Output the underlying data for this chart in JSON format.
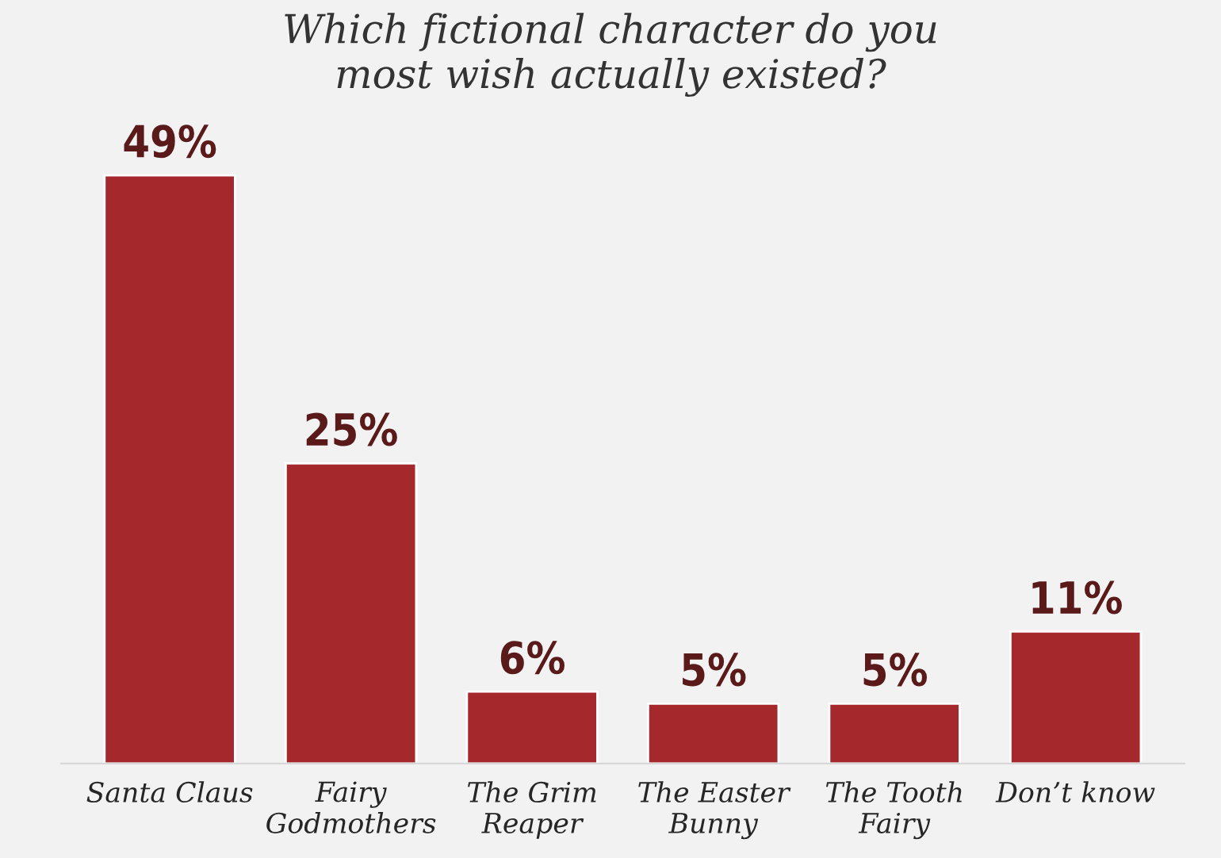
{
  "chart_data": {
    "type": "bar",
    "title": "Which fictional character do you\nmost wish actually existed?",
    "categories": [
      "Santa Claus",
      "Fairy\nGodmothers",
      "The Grim\nReaper",
      "The Easter\nBunny",
      "The Tooth\nFairy",
      "Don’t know"
    ],
    "values": [
      49,
      25,
      6,
      5,
      5,
      11
    ],
    "value_labels": [
      "49%",
      "25%",
      "6%",
      "5%",
      "5%",
      "11%"
    ],
    "color": "#a4282c"
  }
}
